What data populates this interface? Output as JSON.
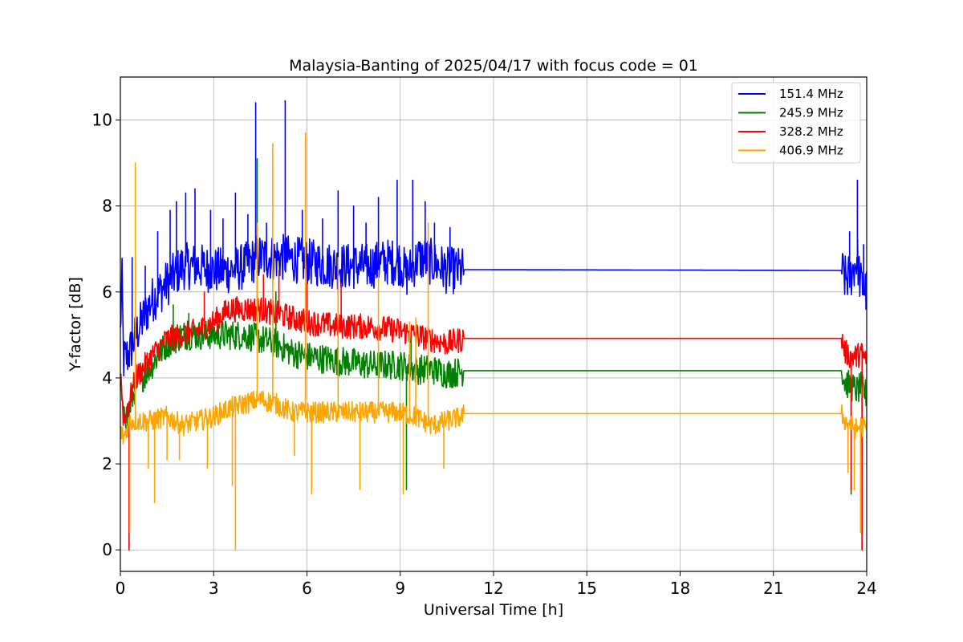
{
  "chart_data": {
    "type": "line",
    "title": "Malaysia-Banting of 2025/04/17 with focus code = 01",
    "xlabel": "Universal Time [h]",
    "ylabel": "Y-factor [dB]",
    "xlim": [
      0,
      24
    ],
    "ylim": [
      -0.5,
      11
    ],
    "xticks": [
      0,
      3,
      6,
      9,
      12,
      15,
      18,
      21,
      24
    ],
    "yticks": [
      0,
      2,
      4,
      6,
      8,
      10
    ],
    "grid": true,
    "legend_position": "top-right",
    "series": [
      {
        "name": "151.4 MHz",
        "color": "#0000ff",
        "x": [
          0,
          0.05,
          0.1,
          0.3,
          0.5,
          1.0,
          1.5,
          2.0,
          2.5,
          3.0,
          3.5,
          4.0,
          4.4,
          4.8,
          5.3,
          6.0,
          7.0,
          8.0,
          8.5,
          9.0,
          9.2,
          9.4,
          9.6,
          10.0,
          10.5,
          11.0,
          11.05,
          23.2,
          23.3,
          23.5,
          23.7,
          23.8,
          24.0
        ],
        "y": [
          5.0,
          6.4,
          4.4,
          4.6,
          5.0,
          5.8,
          6.2,
          6.6,
          6.6,
          6.5,
          6.5,
          6.6,
          6.8,
          6.8,
          6.8,
          6.7,
          6.6,
          6.6,
          6.7,
          6.7,
          6.4,
          6.6,
          6.8,
          6.7,
          6.5,
          6.5,
          6.52,
          6.5,
          6.3,
          6.4,
          6.8,
          6.2,
          6.0
        ],
        "spikes": [
          [
            0.38,
            6.8
          ],
          [
            0.8,
            6.6
          ],
          [
            1.2,
            7.4
          ],
          [
            1.6,
            7.9
          ],
          [
            1.8,
            8.1
          ],
          [
            2.1,
            8.3
          ],
          [
            2.4,
            8.4
          ],
          [
            2.9,
            7.9
          ],
          [
            3.3,
            7.7
          ],
          [
            3.7,
            8.3
          ],
          [
            4.1,
            7.8
          ],
          [
            4.35,
            10.4
          ],
          [
            4.7,
            7.6
          ],
          [
            5.3,
            10.45
          ],
          [
            5.85,
            7.9
          ],
          [
            6.5,
            7.7
          ],
          [
            7.0,
            8.35
          ],
          [
            7.5,
            8.0
          ],
          [
            7.9,
            7.6
          ],
          [
            8.3,
            8.2
          ],
          [
            8.9,
            8.6
          ],
          [
            9.4,
            8.6
          ],
          [
            9.8,
            8.1
          ],
          [
            10.1,
            7.6
          ],
          [
            10.6,
            7.5
          ],
          [
            23.45,
            7.4
          ],
          [
            23.7,
            8.6
          ],
          [
            23.9,
            7.1
          ]
        ]
      },
      {
        "name": "245.9 MHz",
        "color": "#008000",
        "x": [
          0,
          0.1,
          0.3,
          0.5,
          1.0,
          1.5,
          2.0,
          2.5,
          3.0,
          3.5,
          4.0,
          4.5,
          5.0,
          5.5,
          6.0,
          7.0,
          8.0,
          9.0,
          9.5,
          10.0,
          10.5,
          11.0,
          11.05,
          23.2,
          23.3,
          23.5,
          23.7,
          23.8,
          24.0
        ],
        "y": [
          4.0,
          3.0,
          3.3,
          3.8,
          4.3,
          4.8,
          5.0,
          5.0,
          5.0,
          5.0,
          5.0,
          4.9,
          4.8,
          4.6,
          4.5,
          4.4,
          4.3,
          4.3,
          4.2,
          4.2,
          4.1,
          4.15,
          4.17,
          4.17,
          3.9,
          3.8,
          3.7,
          3.8,
          3.6
        ],
        "spikes": [
          [
            0.28,
            0.0
          ],
          [
            1.7,
            5.7
          ],
          [
            2.2,
            5.5
          ],
          [
            4.4,
            9.1
          ],
          [
            5.0,
            6.0
          ],
          [
            9.2,
            1.4
          ],
          [
            9.35,
            5.0
          ],
          [
            23.5,
            1.3
          ],
          [
            23.85,
            0.0
          ]
        ]
      },
      {
        "name": "328.2 MHz",
        "color": "#ff0000",
        "x": [
          0,
          0.1,
          0.3,
          0.5,
          1.0,
          1.5,
          2.0,
          2.5,
          3.0,
          3.5,
          4.0,
          4.5,
          5.0,
          5.5,
          6.0,
          7.0,
          8.0,
          9.0,
          9.5,
          10.0,
          10.5,
          11.0,
          11.05,
          23.2,
          23.3,
          23.5,
          23.7,
          23.8,
          24.0
        ],
        "y": [
          4.3,
          3.0,
          3.5,
          4.0,
          4.5,
          4.9,
          5.0,
          5.1,
          5.3,
          5.6,
          5.6,
          5.6,
          5.5,
          5.4,
          5.3,
          5.2,
          5.2,
          5.1,
          5.0,
          4.9,
          4.8,
          4.9,
          4.92,
          4.92,
          4.6,
          4.5,
          4.5,
          4.6,
          4.4
        ],
        "spikes": [
          [
            0.28,
            0.0
          ],
          [
            2.7,
            6.0
          ],
          [
            4.6,
            6.4
          ],
          [
            5.1,
            6.5
          ],
          [
            6.0,
            6.2
          ],
          [
            7.1,
            6.2
          ],
          [
            23.5,
            1.4
          ],
          [
            23.85,
            0.0
          ]
        ]
      },
      {
        "name": "406.9 MHz",
        "color": "#ffa500",
        "x": [
          0,
          0.1,
          0.3,
          0.5,
          1.0,
          1.5,
          2.0,
          2.5,
          3.0,
          3.5,
          4.0,
          4.5,
          5.0,
          5.5,
          6.0,
          7.0,
          8.0,
          9.0,
          9.5,
          10.0,
          10.5,
          11.0,
          11.05,
          23.2,
          23.3,
          23.5,
          23.7,
          23.8,
          24.0
        ],
        "y": [
          2.8,
          2.6,
          3.0,
          3.0,
          3.0,
          3.1,
          2.9,
          3.0,
          3.1,
          3.3,
          3.4,
          3.5,
          3.4,
          3.2,
          3.2,
          3.2,
          3.2,
          3.2,
          3.1,
          2.9,
          3.0,
          3.1,
          3.17,
          3.17,
          3.0,
          2.9,
          2.8,
          2.9,
          2.8
        ],
        "spikes": [
          [
            0.3,
            0.4
          ],
          [
            0.48,
            9.0
          ],
          [
            0.9,
            1.9
          ],
          [
            1.1,
            1.1
          ],
          [
            1.5,
            2.1
          ],
          [
            1.9,
            2.1
          ],
          [
            2.8,
            1.9
          ],
          [
            3.6,
            1.5
          ],
          [
            3.7,
            0.0
          ],
          [
            4.4,
            7.6
          ],
          [
            4.9,
            9.45
          ],
          [
            5.6,
            2.2
          ],
          [
            5.95,
            9.7
          ],
          [
            6.15,
            1.3
          ],
          [
            7.0,
            6.8
          ],
          [
            7.7,
            1.4
          ],
          [
            8.3,
            6.5
          ],
          [
            9.1,
            1.3
          ],
          [
            9.3,
            5.3
          ],
          [
            9.5,
            5.4
          ],
          [
            9.9,
            7.6
          ],
          [
            10.4,
            1.9
          ],
          [
            23.4,
            1.8
          ],
          [
            23.6,
            1.4
          ],
          [
            23.8,
            0.4
          ]
        ]
      }
    ]
  }
}
